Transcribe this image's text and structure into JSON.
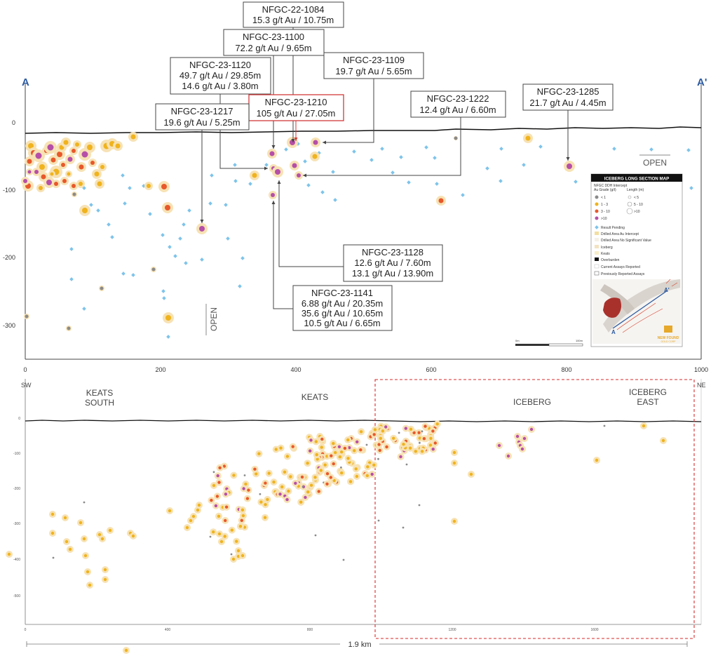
{
  "section_markers": {
    "start": "A",
    "end": "A'"
  },
  "upper": {
    "y_ticks": [
      "0",
      "-100",
      "-200",
      "-300"
    ],
    "x_ticks": [
      "0",
      "200",
      "400",
      "600",
      "800",
      "1000"
    ],
    "open_right": "OPEN",
    "open_lower": "OPEN",
    "callouts": [
      {
        "hole": "NFGC-22-1084",
        "lines": [
          "15.3 g/t Au / 10.75m"
        ]
      },
      {
        "hole": "NFGC-23-1100",
        "lines": [
          "72.2 g/t Au / 9.65m"
        ]
      },
      {
        "hole": "NFGC-23-1109",
        "lines": [
          "19.7 g/t Au / 5.65m"
        ]
      },
      {
        "hole": "NFGC-23-1120",
        "lines": [
          "49.7 g/t Au / 29.85m",
          "14.6 g/t Au / 3.80m"
        ]
      },
      {
        "hole": "NFGC-23-1210",
        "lines": [
          "105 g/t Au / 27.05m"
        ]
      },
      {
        "hole": "NFGC-23-1222",
        "lines": [
          "12.4 g/t Au / 6.60m"
        ]
      },
      {
        "hole": "NFGC-23-1285",
        "lines": [
          "21.7 g/t Au / 4.45m"
        ]
      },
      {
        "hole": "NFGC-23-1217",
        "lines": [
          "19.6 g/t Au / 5.25m"
        ]
      },
      {
        "hole": "NFGC-23-1128",
        "lines": [
          "12.6 g/t Au / 7.60m",
          "13.1 g/t Au / 13.90m"
        ]
      },
      {
        "hole": "NFGC-23-1141",
        "lines": [
          "6.88 g/t Au / 20.35m",
          "35.6 g/t Au / 10.65m",
          "10.5 g/t Au / 6.65m"
        ]
      }
    ]
  },
  "legend": {
    "title": "ICEBERG LONG SECTION MAP",
    "subtitle": "NFGC DDH Intercept",
    "grade_header": "Au Grade (g/t)",
    "length_header": "Length (m)",
    "grades": [
      "< 1",
      "1 - 3",
      "3 - 10",
      ">10"
    ],
    "lengths": [
      "< 5",
      "5 - 10",
      ">10"
    ],
    "items": [
      "Result Pending",
      "Drilled Area Au Intercept",
      "Drilled Area No Significant Value",
      "Iceberg",
      "Keats",
      "Overburden",
      "Current Assays Reported",
      "Previously Reported Assays"
    ],
    "scale_start": "0m",
    "scale_end": "100m",
    "company": "NEW FOUND",
    "company_sub": "GOLD CORP",
    "colors": {
      "lt1": "#8a8a8a",
      "g1_3": "#f0b31d",
      "g3_10": "#e8582a",
      "gt10": "#b64fa8",
      "halo": "#f7e2b4",
      "pending": "#7ec4ea"
    }
  },
  "lower": {
    "sw": "SW",
    "ne": "NE",
    "regions": [
      "KEATS SOUTH",
      "KEATS",
      "ICEBERG",
      "ICEBERG EAST"
    ],
    "y_ticks": [
      "0",
      "-100",
      "-200",
      "-300",
      "-400",
      "-500"
    ],
    "x_ticks": [
      "0",
      "400",
      "800",
      "1200",
      "1600"
    ],
    "distance": "1.9 km"
  }
}
